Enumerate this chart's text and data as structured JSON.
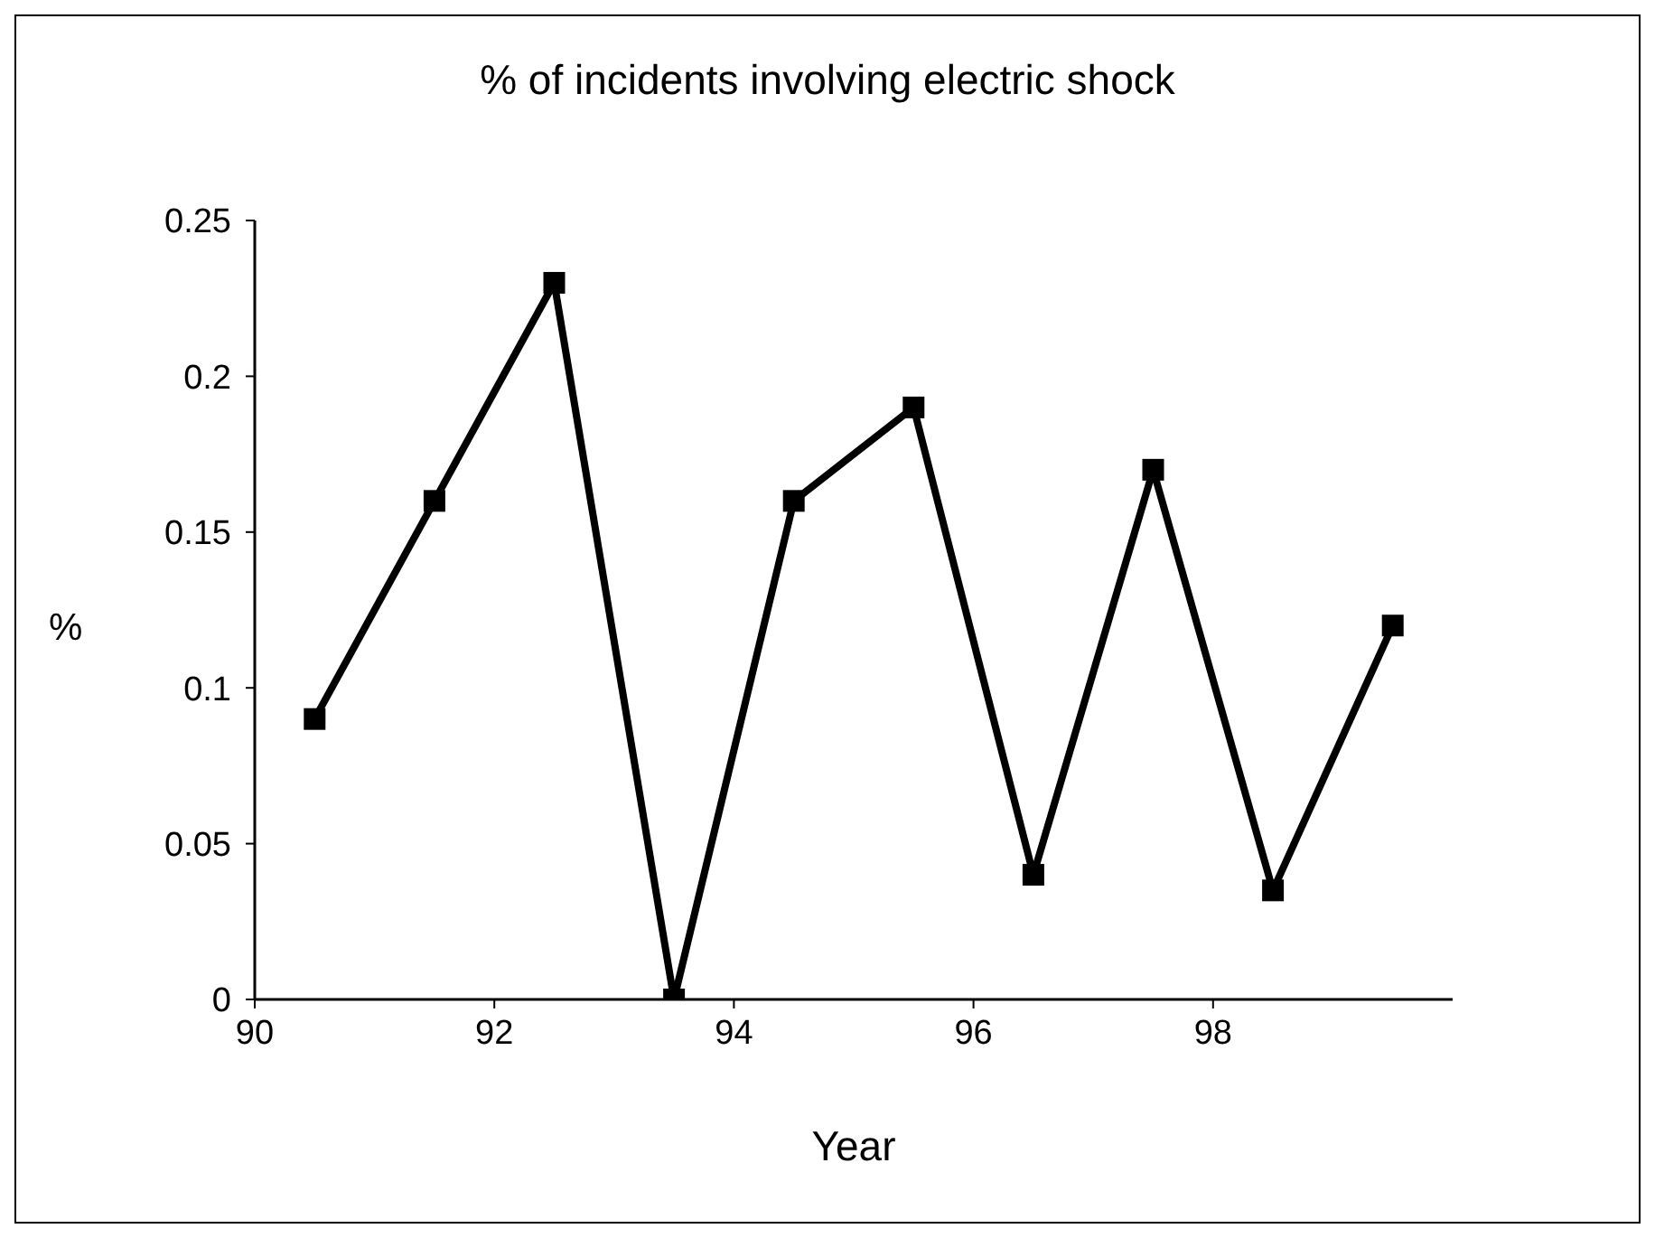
{
  "chart_data": {
    "type": "line",
    "title": "% of incidents involving electric shock",
    "xlabel": "Year",
    "ylabel": "%",
    "x": [
      90.5,
      91.5,
      92.5,
      93.5,
      94.5,
      95.5,
      96.5,
      97.5,
      98.5,
      99.5
    ],
    "series": [
      {
        "color": "#000000",
        "values": [
          0.09,
          0.16,
          0.23,
          0,
          0.16,
          0.19,
          0.04,
          0.17,
          0.035,
          0.12
        ]
      }
    ],
    "xlim": [
      90,
      100
    ],
    "xticks": [
      90,
      92,
      94,
      96,
      98
    ],
    "ylim": [
      0,
      0.25
    ],
    "yticks": [
      0,
      0.05,
      0.1,
      0.15,
      0.2,
      0.25
    ],
    "grid": false,
    "legend": false,
    "marker": "square",
    "line_style": "solid"
  }
}
